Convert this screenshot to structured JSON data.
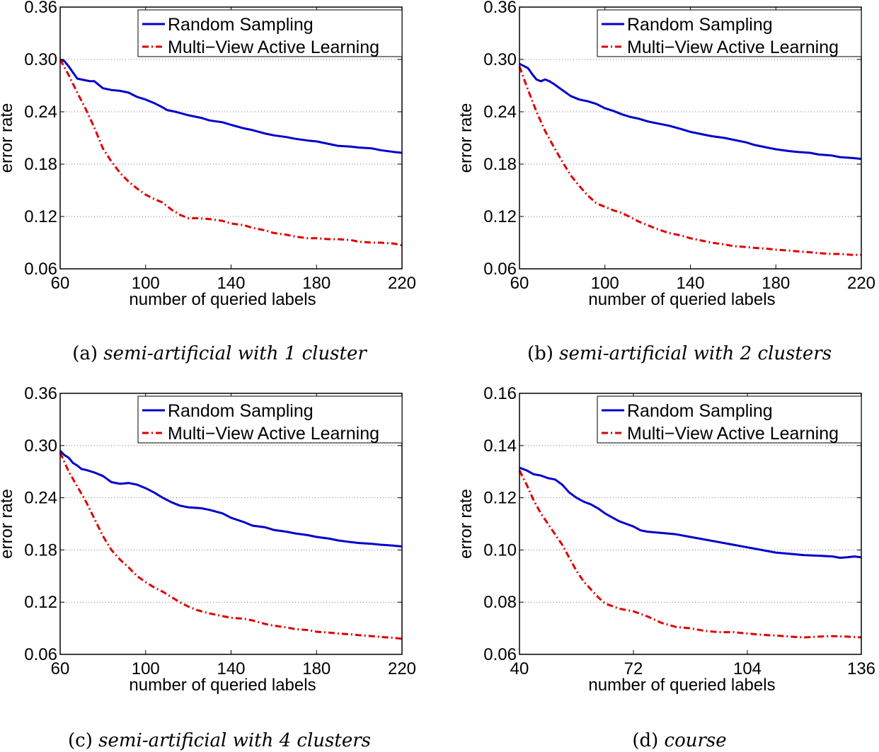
{
  "chart_data": [
    {
      "type": "line",
      "caption": {
        "label": "(a)",
        "title": "semi-artificial with 1 cluster"
      },
      "xlabel": "number of queried labels",
      "ylabel": "error rate",
      "xlim": [
        60,
        220
      ],
      "ylim": [
        0.06,
        0.36
      ],
      "xticks": [
        60,
        100,
        140,
        180,
        220
      ],
      "xtick_labels": [
        "60",
        "100",
        "140",
        "180",
        "220"
      ],
      "yticks": [
        0.06,
        0.12,
        0.18,
        0.24,
        0.3,
        0.36
      ],
      "ytick_labels": [
        "0.06",
        "0.12",
        "0.18",
        "0.24",
        "0.30",
        "0.36"
      ],
      "grid": "horizontal dotted",
      "legend": "top-right",
      "series": [
        {
          "name": "Random Sampling",
          "color": "#0000cc",
          "style": "solid",
          "x": [
            60,
            62,
            64,
            66,
            68,
            70,
            72,
            74,
            76,
            78,
            80,
            84,
            88,
            92,
            96,
            100,
            104,
            108,
            110,
            114,
            120,
            126,
            130,
            136,
            140,
            146,
            150,
            156,
            160,
            166,
            170,
            176,
            180,
            186,
            190,
            196,
            200,
            206,
            210,
            216,
            220
          ],
          "y": [
            0.3,
            0.298,
            0.292,
            0.285,
            0.278,
            0.277,
            0.276,
            0.275,
            0.275,
            0.271,
            0.267,
            0.265,
            0.264,
            0.262,
            0.257,
            0.254,
            0.25,
            0.245,
            0.242,
            0.24,
            0.236,
            0.233,
            0.23,
            0.228,
            0.225,
            0.221,
            0.219,
            0.215,
            0.213,
            0.211,
            0.209,
            0.207,
            0.206,
            0.203,
            0.201,
            0.2,
            0.199,
            0.198,
            0.196,
            0.194,
            0.193
          ]
        },
        {
          "name": "Multi−View Active Learning",
          "color": "#dd0000",
          "style": "dash-dot",
          "x": [
            60,
            64,
            68,
            72,
            76,
            80,
            84,
            88,
            92,
            96,
            100,
            104,
            108,
            112,
            116,
            120,
            124,
            130,
            136,
            140,
            146,
            150,
            156,
            160,
            166,
            170,
            176,
            180,
            186,
            190,
            196,
            200,
            206,
            210,
            216,
            220
          ],
          "y": [
            0.3,
            0.282,
            0.262,
            0.243,
            0.222,
            0.198,
            0.183,
            0.17,
            0.16,
            0.152,
            0.145,
            0.14,
            0.136,
            0.128,
            0.122,
            0.118,
            0.118,
            0.117,
            0.115,
            0.112,
            0.11,
            0.107,
            0.104,
            0.101,
            0.099,
            0.097,
            0.095,
            0.095,
            0.094,
            0.094,
            0.093,
            0.091,
            0.09,
            0.09,
            0.089,
            0.087
          ]
        }
      ]
    },
    {
      "type": "line",
      "caption": {
        "label": "(b)",
        "title": "semi-artificial with 2 clusters"
      },
      "xlabel": "number of queried labels",
      "ylabel": "error rate",
      "xlim": [
        60,
        220
      ],
      "ylim": [
        0.06,
        0.36
      ],
      "xticks": [
        60,
        100,
        140,
        180,
        220
      ],
      "xtick_labels": [
        "60",
        "100",
        "140",
        "180",
        "220"
      ],
      "yticks": [
        0.06,
        0.12,
        0.18,
        0.24,
        0.3,
        0.36
      ],
      "ytick_labels": [
        "0.06",
        "0.12",
        "0.18",
        "0.24",
        "0.30",
        "0.36"
      ],
      "grid": "horizontal dotted",
      "legend": "top-right",
      "series": [
        {
          "name": "Random Sampling",
          "color": "#0000cc",
          "style": "solid",
          "x": [
            60,
            64,
            66,
            68,
            70,
            72,
            74,
            76,
            80,
            84,
            88,
            92,
            96,
            100,
            104,
            108,
            112,
            116,
            120,
            126,
            130,
            136,
            140,
            146,
            150,
            156,
            160,
            166,
            170,
            176,
            180,
            186,
            190,
            196,
            200,
            206,
            210,
            216,
            220
          ],
          "y": [
            0.295,
            0.29,
            0.283,
            0.277,
            0.275,
            0.277,
            0.275,
            0.272,
            0.265,
            0.258,
            0.254,
            0.252,
            0.249,
            0.244,
            0.241,
            0.237,
            0.234,
            0.232,
            0.229,
            0.226,
            0.224,
            0.22,
            0.217,
            0.214,
            0.212,
            0.21,
            0.208,
            0.205,
            0.202,
            0.199,
            0.197,
            0.195,
            0.194,
            0.193,
            0.191,
            0.19,
            0.188,
            0.187,
            0.186
          ]
        },
        {
          "name": "Multi−View Active Learning",
          "color": "#dd0000",
          "style": "dash-dot",
          "x": [
            60,
            64,
            68,
            72,
            76,
            80,
            84,
            88,
            92,
            96,
            100,
            104,
            108,
            112,
            116,
            120,
            124,
            130,
            136,
            140,
            146,
            150,
            156,
            160,
            166,
            170,
            176,
            180,
            186,
            190,
            196,
            200,
            206,
            210,
            216,
            220
          ],
          "y": [
            0.292,
            0.265,
            0.24,
            0.218,
            0.2,
            0.183,
            0.167,
            0.155,
            0.144,
            0.135,
            0.131,
            0.127,
            0.124,
            0.119,
            0.114,
            0.11,
            0.106,
            0.101,
            0.098,
            0.095,
            0.092,
            0.09,
            0.088,
            0.086,
            0.085,
            0.084,
            0.083,
            0.082,
            0.081,
            0.08,
            0.079,
            0.078,
            0.077,
            0.077,
            0.076,
            0.076
          ]
        }
      ]
    },
    {
      "type": "line",
      "caption": {
        "label": "(c)",
        "title": "semi-artificial with 4 clusters"
      },
      "xlabel": "number of queried labels",
      "ylabel": "error rate",
      "xlim": [
        60,
        220
      ],
      "ylim": [
        0.06,
        0.36
      ],
      "xticks": [
        60,
        100,
        140,
        180,
        220
      ],
      "xtick_labels": [
        "60",
        "100",
        "140",
        "180",
        "220"
      ],
      "yticks": [
        0.06,
        0.12,
        0.18,
        0.24,
        0.3,
        0.36
      ],
      "ytick_labels": [
        "0.06",
        "0.12",
        "0.18",
        "0.24",
        "0.30",
        "0.36"
      ],
      "grid": "horizontal dotted",
      "legend": "top-right",
      "series": [
        {
          "name": "Random Sampling",
          "color": "#0000cc",
          "style": "solid",
          "x": [
            60,
            62,
            64,
            66,
            68,
            70,
            72,
            76,
            80,
            84,
            88,
            92,
            96,
            100,
            104,
            108,
            112,
            116,
            120,
            126,
            130,
            136,
            140,
            146,
            150,
            156,
            160,
            166,
            170,
            176,
            180,
            186,
            190,
            196,
            200,
            206,
            210,
            216,
            220
          ],
          "y": [
            0.294,
            0.289,
            0.286,
            0.28,
            0.277,
            0.273,
            0.272,
            0.269,
            0.265,
            0.258,
            0.256,
            0.257,
            0.255,
            0.251,
            0.246,
            0.24,
            0.235,
            0.231,
            0.229,
            0.228,
            0.226,
            0.222,
            0.217,
            0.212,
            0.208,
            0.206,
            0.203,
            0.201,
            0.199,
            0.197,
            0.195,
            0.193,
            0.191,
            0.189,
            0.188,
            0.187,
            0.186,
            0.185,
            0.184
          ]
        },
        {
          "name": "Multi−View Active Learning",
          "color": "#dd0000",
          "style": "dash-dot",
          "x": [
            60,
            64,
            68,
            72,
            76,
            80,
            84,
            88,
            92,
            96,
            100,
            104,
            108,
            112,
            116,
            120,
            124,
            130,
            136,
            140,
            146,
            150,
            156,
            160,
            166,
            170,
            176,
            180,
            186,
            190,
            196,
            200,
            206,
            210,
            216,
            220
          ],
          "y": [
            0.292,
            0.27,
            0.253,
            0.236,
            0.216,
            0.196,
            0.18,
            0.169,
            0.16,
            0.15,
            0.143,
            0.137,
            0.132,
            0.126,
            0.12,
            0.115,
            0.111,
            0.107,
            0.104,
            0.102,
            0.101,
            0.099,
            0.095,
            0.093,
            0.091,
            0.089,
            0.088,
            0.086,
            0.085,
            0.084,
            0.083,
            0.082,
            0.081,
            0.08,
            0.079,
            0.078
          ]
        }
      ]
    },
    {
      "type": "line",
      "caption": {
        "label": "(d)",
        "title": "course"
      },
      "xlabel": "number of queried labels",
      "ylabel": "error rate",
      "xlim": [
        40,
        136
      ],
      "ylim": [
        0.06,
        0.16
      ],
      "xticks": [
        40,
        72,
        104,
        136
      ],
      "xtick_labels": [
        "40",
        "72",
        "104",
        "136"
      ],
      "yticks": [
        0.06,
        0.08,
        0.1,
        0.12,
        0.14,
        0.16
      ],
      "ytick_labels": [
        "0.06",
        "0.08",
        "0.10",
        "0.12",
        "0.14",
        "0.16"
      ],
      "grid": "horizontal dotted",
      "legend": "top-right",
      "series": [
        {
          "name": "Random Sampling",
          "color": "#0000cc",
          "style": "solid",
          "x": [
            40,
            42,
            44,
            46,
            48,
            50,
            52,
            54,
            56,
            58,
            60,
            62,
            64,
            66,
            68,
            70,
            72,
            74,
            76,
            80,
            84,
            88,
            92,
            96,
            100,
            104,
            108,
            112,
            116,
            120,
            124,
            128,
            130,
            132,
            134,
            136
          ],
          "y": [
            0.1315,
            0.1305,
            0.129,
            0.1285,
            0.1275,
            0.127,
            0.125,
            0.122,
            0.12,
            0.1185,
            0.1175,
            0.116,
            0.114,
            0.1125,
            0.111,
            0.11,
            0.109,
            0.1075,
            0.107,
            0.1065,
            0.106,
            0.105,
            0.104,
            0.103,
            0.102,
            0.101,
            0.1,
            0.099,
            0.0985,
            0.098,
            0.0978,
            0.0975,
            0.097,
            0.0972,
            0.0975,
            0.0972
          ]
        },
        {
          "name": "Multi−View Active Learning",
          "color": "#dd0000",
          "style": "dash-dot",
          "x": [
            40,
            42,
            44,
            46,
            48,
            50,
            52,
            54,
            56,
            58,
            60,
            62,
            64,
            66,
            68,
            70,
            72,
            74,
            76,
            80,
            84,
            88,
            92,
            96,
            100,
            104,
            108,
            112,
            116,
            120,
            124,
            128,
            132,
            136
          ],
          "y": [
            0.1305,
            0.125,
            0.119,
            0.114,
            0.11,
            0.106,
            0.102,
            0.097,
            0.092,
            0.088,
            0.085,
            0.082,
            0.0795,
            0.0785,
            0.0775,
            0.077,
            0.0765,
            0.0755,
            0.0745,
            0.072,
            0.0705,
            0.07,
            0.069,
            0.0685,
            0.0685,
            0.068,
            0.0675,
            0.0672,
            0.0668,
            0.0665,
            0.0668,
            0.067,
            0.0668,
            0.0665
          ]
        }
      ]
    }
  ]
}
